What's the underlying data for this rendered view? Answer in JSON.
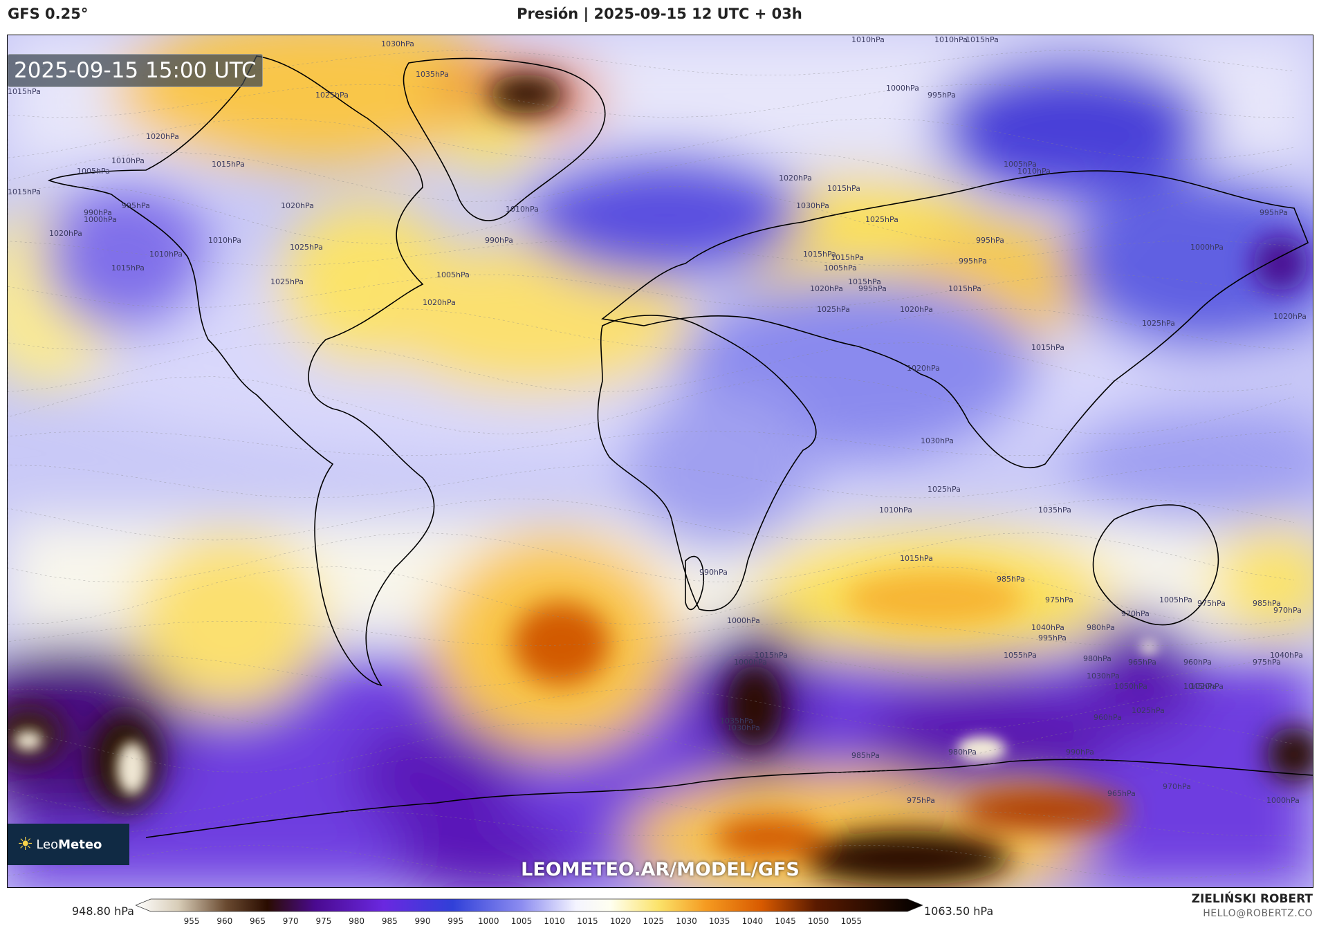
{
  "header": {
    "model": "GFS 0.25°",
    "title": "Presión | 2025-09-15 12 UTC + 03h"
  },
  "map": {
    "timestamp": "2025-09-15 15:00 UTC",
    "watermark": "LEOMETEO.AR/MODEL/GFS",
    "logo": {
      "light": "Leo",
      "bold": "Meteo",
      "icon": "sun-icon"
    },
    "colors": {
      "high_core": "#1c0a00",
      "high": "#e06a00",
      "moderate_high": "#fbe36a",
      "neutral": "#fdfdf0",
      "low": "#9c9cf0",
      "deep_low": "#5a18b8",
      "extreme_low": "#2a0c00"
    },
    "pressure_labels": [
      "1030hPa",
      "1035hPa",
      "1025hPa",
      "1015hPa",
      "1010hPa",
      "1015hPa",
      "1020hPa",
      "1010hPa",
      "1005hPa",
      "990hPa",
      "1000hPa",
      "995hPa",
      "1015hPa",
      "1020hPa",
      "1015hPa",
      "1020hPa",
      "1010hPa",
      "1025hPa",
      "1015hPa",
      "1010hPa",
      "1025hPa",
      "1020hPa",
      "1010hPa",
      "995hPa",
      "1000hPa",
      "990hPa",
      "1005hPa",
      "1010hPa",
      "1020hPa",
      "1015hPa",
      "1030hPa",
      "1025hPa",
      "1015hPa",
      "1010hPa",
      "1005hPa",
      "995hPa",
      "995hPa",
      "1000hPa",
      "995hPa",
      "1005hPa",
      "995hPa",
      "1015hPa",
      "1015hPa",
      "1020hPa",
      "1025hPa",
      "1020hPa",
      "1015hPa",
      "1025hPa",
      "1020hPa",
      "1015hPa",
      "1020hPa",
      "1025hPa",
      "1030hPa",
      "1035hPa",
      "1010hPa",
      "1015hPa",
      "985hPa",
      "975hPa",
      "980hPa",
      "995hPa",
      "970hPa",
      "1005hPa",
      "975hPa",
      "985hPa",
      "970hPa",
      "980hPa",
      "965hPa",
      "960hPa",
      "975hPa",
      "990hPa",
      "1000hPa",
      "1000hPa",
      "1015hPa",
      "1035hPa",
      "1030hPa",
      "1045hPa",
      "1040hPa",
      "1050hPa",
      "1055hPa",
      "1040hPa",
      "1030hPa",
      "1025hPa",
      "1020hPa",
      "965hPa",
      "960hPa",
      "970hPa",
      "990hPa",
      "1000hPa",
      "980hPa",
      "985hPa",
      "975hPa"
    ]
  },
  "colorbar": {
    "min_label": "948.80 hPa",
    "max_label": "1063.50 hPa",
    "ticks": [
      "955",
      "960",
      "965",
      "970",
      "975",
      "980",
      "985",
      "990",
      "995",
      "1000",
      "1005",
      "1010",
      "1015",
      "1020",
      "1025",
      "1030",
      "1035",
      "1040",
      "1045",
      "1050",
      "1055"
    ],
    "stops": [
      {
        "v": 948.8,
        "c": "#ffffff"
      },
      {
        "v": 955,
        "c": "#d8cdb8"
      },
      {
        "v": 962,
        "c": "#6a4a30"
      },
      {
        "v": 968,
        "c": "#2a0c00"
      },
      {
        "v": 975,
        "c": "#4a0a90"
      },
      {
        "v": 985,
        "c": "#6a28e0"
      },
      {
        "v": 995,
        "c": "#3040d8"
      },
      {
        "v": 1005,
        "c": "#8c8cf0"
      },
      {
        "v": 1013,
        "c": "#f4f4ff"
      },
      {
        "v": 1018,
        "c": "#fffff0"
      },
      {
        "v": 1025,
        "c": "#fbe36a"
      },
      {
        "v": 1032,
        "c": "#f59a20"
      },
      {
        "v": 1040,
        "c": "#d85a00"
      },
      {
        "v": 1048,
        "c": "#5a1a00"
      },
      {
        "v": 1063.5,
        "c": "#000000"
      }
    ]
  },
  "credits": {
    "author": "ZIELIŃSKI ROBERT",
    "email": "HELLO@ROBERTZ.CO"
  }
}
